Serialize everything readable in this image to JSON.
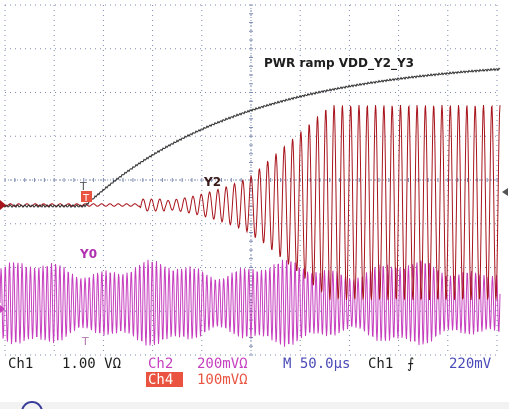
{
  "colors": {
    "background": "#ffffff",
    "grid": "#7f8bb0",
    "ch1": "#2d2d2d",
    "ch2": "#a8141c",
    "ch4": "#c63fbf",
    "status_dark": "#1e1e1e",
    "status_magenta": "#c63fbf",
    "status_blue": "#4a4ab8",
    "ch4_badge_bg": "#e9533f",
    "ch4_badge_text": "#ffffff"
  },
  "labels": {
    "ch1_trace": "PWR ramp VDD_Y2_Y3",
    "ch2_trace": "Y2",
    "ch4_trace": "Y0",
    "marker_T": "T",
    "marker_T2": "T",
    "marker_T3": "T"
  },
  "status": {
    "ch1_name": "Ch1",
    "ch1_scale": "1.00 VΩ",
    "ch2_name": "Ch2",
    "ch2_scale": "200mVΩ",
    "ch4_name": "Ch4",
    "ch4_scale": "100mVΩ",
    "timebase": "M 50.0µs",
    "trigger_source": "Ch1",
    "trigger_slope": "⨍",
    "trigger_level": "220mV"
  },
  "icons": {
    "trigger_marker": "trigger-arrow-icon",
    "ch2_ground_marker": "channel-ground-marker-icon"
  }
}
